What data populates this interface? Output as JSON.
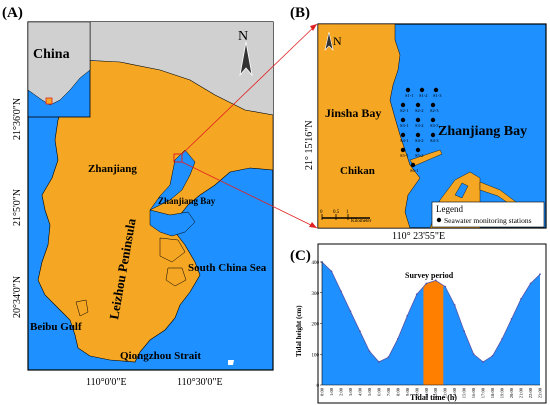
{
  "panel_a": {
    "label": "(A)",
    "inset_label": "China",
    "north_label": "N",
    "places": {
      "zhanjiang": "Zhanjiang",
      "peninsula": "Leizhou Peninsula",
      "zhanjiang_bay": "Zhanjiang Bay",
      "south_china_sea": "South China Sea",
      "beibu_gulf": "Beibu Gulf",
      "qiongzhou_strait": "Qiongzhou Strait"
    },
    "lat_labels": [
      "21°36'0\"N",
      "21°5'0\"N",
      "20°34'0\"N"
    ],
    "lon_labels": [
      "110°0'0\"E",
      "110°30'0\"E"
    ]
  },
  "panel_b": {
    "label": "(B)",
    "north_label": "N",
    "places": {
      "jinsha_bay": "Jinsha Bay",
      "zhanjiang_bay": "Zhanjiang Bay",
      "chikan": "Chikan"
    },
    "lat_label": "21° 15'16\"N",
    "lon_label": "110°  23'55\"E",
    "scale": {
      "ticks": [
        "0",
        "0.5",
        "1"
      ],
      "unit": "Kilometer"
    },
    "legend": {
      "title": "Legend",
      "item": "Seawater monitoring stations"
    },
    "stations": [
      "S1-1",
      "S1-2",
      "S1-3",
      "S2-1",
      "S2-2",
      "S2-3",
      "S3-1",
      "S3-2",
      "S3-3",
      "S4-1",
      "S4-2",
      "S4-3",
      "S5-1",
      "S5-2",
      "S6-1"
    ]
  },
  "panel_c": {
    "label": "(C)",
    "chart_data": {
      "type": "area",
      "title": "",
      "annotation": "Survey period",
      "xlabel": "Tidal time (h)",
      "ylabel": "Tidal height (cm)",
      "x": [
        "0:00",
        "1:00",
        "2:00",
        "3:00",
        "4:00",
        "5:00",
        "6:00",
        "7:00",
        "8:00",
        "9:00",
        "10:00",
        "11:00",
        "12:00",
        "13:00",
        "14:00",
        "15:00",
        "16:00",
        "17:00",
        "18:00",
        "19:00",
        "20:00",
        "21:00",
        "22:00",
        "23:00"
      ],
      "values": [
        400,
        370,
        305,
        240,
        175,
        110,
        75,
        90,
        150,
        225,
        295,
        330,
        340,
        320,
        260,
        175,
        100,
        75,
        95,
        150,
        215,
        280,
        330,
        360
      ],
      "yticks": [
        0,
        100,
        200,
        300,
        400
      ],
      "ylim": [
        0,
        400
      ],
      "highlight": {
        "from_h": 10.7,
        "to_h": 12.8
      },
      "colors": {
        "area": "#1e90ff",
        "highlight": "#ff7f00",
        "curve": "#5555aa"
      }
    }
  },
  "colors": {
    "land": "#f5a623",
    "sea": "#1e90ff",
    "inset_land": "#d0d0d0",
    "zoom_box": "#e02020"
  }
}
